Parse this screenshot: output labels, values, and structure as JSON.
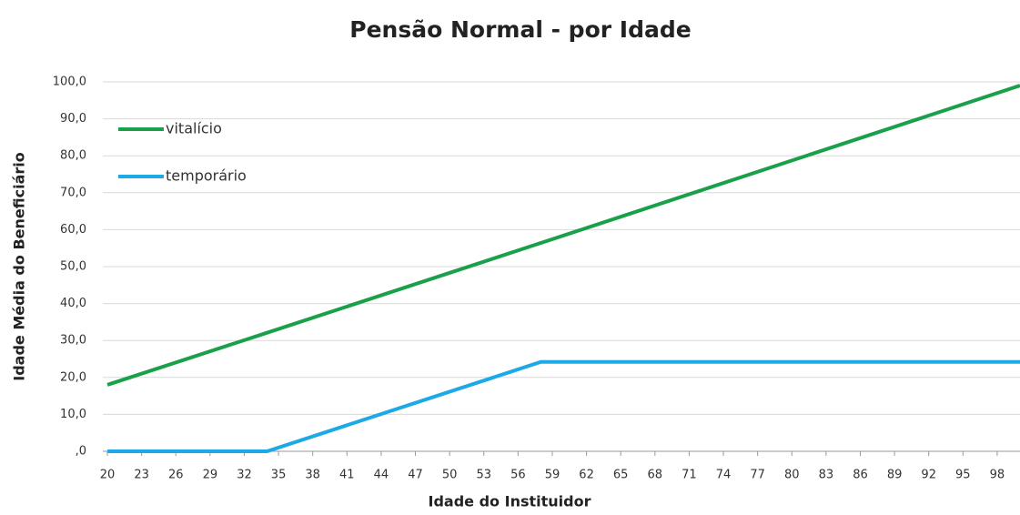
{
  "chart_data": {
    "type": "line",
    "title": "Pensão Normal - por Idade",
    "x_label": "Idade do Instituidor",
    "y_label": "Idade Média do Beneficiário",
    "x": [
      20,
      34,
      58,
      100
    ],
    "series": [
      {
        "name": "vitalício",
        "color": "#1aa04a",
        "values": [
          18,
          32.1,
          56.4,
          99
        ]
      },
      {
        "name": "temporário",
        "color": "#1ca9e6",
        "values": [
          0,
          0,
          24.2,
          24.2
        ]
      }
    ],
    "xlim": [
      19.6,
      100
    ],
    "xticks": [
      20,
      23,
      26,
      29,
      32,
      35,
      38,
      41,
      44,
      47,
      50,
      53,
      56,
      59,
      62,
      65,
      68,
      71,
      74,
      77,
      80,
      83,
      86,
      89,
      92,
      95,
      98
    ],
    "ylim": [
      0,
      100
    ],
    "yticks": [
      {
        "value": 0,
        "label": ",0"
      },
      {
        "value": 10,
        "label": "10,0"
      },
      {
        "value": 20,
        "label": "20,0"
      },
      {
        "value": 30,
        "label": "30,0"
      },
      {
        "value": 40,
        "label": "40,0"
      },
      {
        "value": 50,
        "label": "50,0"
      },
      {
        "value": 60,
        "label": "60,0"
      },
      {
        "value": 70,
        "label": "70,0"
      },
      {
        "value": 80,
        "label": "80,0"
      },
      {
        "value": 90,
        "label": "90,0"
      },
      {
        "value": 100,
        "label": "100,0"
      }
    ],
    "grid": true,
    "legend": "top-left"
  }
}
